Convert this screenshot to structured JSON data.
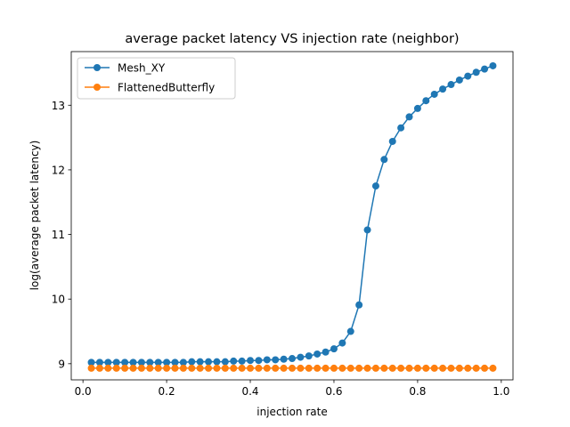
{
  "chart_data": {
    "type": "line",
    "title": "average packet latency VS injection rate (neighbor)",
    "xlabel": "injection rate",
    "ylabel": "log(average packet latency)",
    "xlim": [
      -0.028,
      1.028
    ],
    "ylim": [
      8.75,
      13.83
    ],
    "xticks": [
      0.0,
      0.2,
      0.4,
      0.6,
      0.8,
      1.0
    ],
    "xtick_labels": [
      "0.0",
      "0.2",
      "0.4",
      "0.6",
      "0.8",
      "1.0"
    ],
    "yticks": [
      9,
      10,
      11,
      12,
      13
    ],
    "ytick_labels": [
      "9",
      "10",
      "11",
      "12",
      "13"
    ],
    "grid": false,
    "legend_position": "top-left",
    "x": [
      0.02,
      0.04,
      0.06,
      0.08,
      0.1,
      0.12,
      0.14,
      0.16,
      0.18,
      0.2,
      0.22,
      0.24,
      0.26,
      0.28,
      0.3,
      0.32,
      0.34,
      0.36,
      0.38,
      0.4,
      0.42,
      0.44,
      0.46,
      0.48,
      0.5,
      0.52,
      0.54,
      0.56,
      0.58,
      0.6,
      0.62,
      0.64,
      0.66,
      0.68,
      0.7,
      0.72,
      0.74,
      0.76,
      0.78,
      0.8,
      0.82,
      0.84,
      0.86,
      0.88,
      0.9,
      0.92,
      0.94,
      0.96,
      0.98
    ],
    "series": [
      {
        "name": "Mesh_XY",
        "color": "#1f77b4",
        "values": [
          9.02,
          9.02,
          9.02,
          9.02,
          9.02,
          9.02,
          9.02,
          9.02,
          9.02,
          9.02,
          9.02,
          9.02,
          9.03,
          9.03,
          9.03,
          9.03,
          9.03,
          9.04,
          9.04,
          9.05,
          9.05,
          9.06,
          9.06,
          9.07,
          9.08,
          9.1,
          9.12,
          9.15,
          9.18,
          9.23,
          9.32,
          9.5,
          9.91,
          11.07,
          11.75,
          12.16,
          12.44,
          12.65,
          12.82,
          12.95,
          13.07,
          13.17,
          13.25,
          13.32,
          13.39,
          13.45,
          13.51,
          13.56,
          13.61
        ]
      },
      {
        "name": "FlattenedButterfly",
        "color": "#ff7f0e",
        "values": [
          8.93,
          8.93,
          8.93,
          8.93,
          8.93,
          8.93,
          8.93,
          8.93,
          8.93,
          8.93,
          8.93,
          8.93,
          8.93,
          8.93,
          8.93,
          8.93,
          8.93,
          8.93,
          8.93,
          8.93,
          8.93,
          8.93,
          8.93,
          8.93,
          8.93,
          8.93,
          8.93,
          8.93,
          8.93,
          8.93,
          8.93,
          8.93,
          8.93,
          8.93,
          8.93,
          8.93,
          8.93,
          8.93,
          8.93,
          8.93,
          8.93,
          8.93,
          8.93,
          8.93,
          8.93,
          8.93,
          8.93,
          8.93,
          8.93
        ]
      }
    ]
  }
}
